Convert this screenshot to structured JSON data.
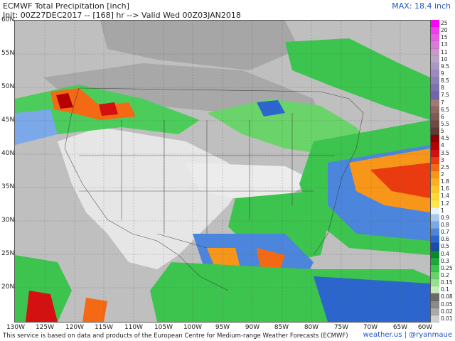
{
  "header": {
    "title": "ECMWF Total Precipitation [inch]",
    "subtitle": "Init: 00Z27DEC2017 -- [168] hr --> Valid Wed 00Z03JAN2018",
    "max_label": "MAX: 18.4 inch"
  },
  "axes": {
    "lat_labels": [
      "60N",
      "55N",
      "50N",
      "45N",
      "40N",
      "35N",
      "30N",
      "25N",
      "20N"
    ],
    "lon_labels": [
      "130W",
      "125W",
      "120W",
      "115W",
      "110W",
      "105W",
      "100W",
      "95W",
      "90W",
      "85W",
      "80W",
      "75W",
      "70W",
      "65W",
      "60W"
    ]
  },
  "colorbar": {
    "levels": [
      {
        "label": "25",
        "color": "#ff00ff"
      },
      {
        "label": "20",
        "color": "#f23cf2"
      },
      {
        "label": "15",
        "color": "#e45fe4"
      },
      {
        "label": "13",
        "color": "#d67ed6"
      },
      {
        "label": "11",
        "color": "#c89ac8"
      },
      {
        "label": "10",
        "color": "#b9a6c6"
      },
      {
        "label": "9.5",
        "color": "#a898c2"
      },
      {
        "label": "9",
        "color": "#9a8bbe"
      },
      {
        "label": "8.5",
        "color": "#8c7fb8"
      },
      {
        "label": "8",
        "color": "#7d72b0"
      },
      {
        "label": "7.5",
        "color": "#6f66a8"
      },
      {
        "label": "7",
        "color": "#a07c70"
      },
      {
        "label": "6.5",
        "color": "#8f6a60"
      },
      {
        "label": "6",
        "color": "#7f5a50"
      },
      {
        "label": "5.5",
        "color": "#6e4a42"
      },
      {
        "label": "5",
        "color": "#5e3a34"
      },
      {
        "label": "4.5",
        "color": "#8c0000"
      },
      {
        "label": "4",
        "color": "#b40000"
      },
      {
        "label": "3.5",
        "color": "#d41010"
      },
      {
        "label": "3",
        "color": "#ea3a10"
      },
      {
        "label": "2.5",
        "color": "#f46a14"
      },
      {
        "label": "2",
        "color": "#f8961a"
      },
      {
        "label": "1.8",
        "color": "#fbb022"
      },
      {
        "label": "1.6",
        "color": "#fdc52c"
      },
      {
        "label": "1.4",
        "color": "#fed838"
      },
      {
        "label": "1.2",
        "color": "#fee84c"
      },
      {
        "label": "1",
        "color": "#e8f0f8"
      },
      {
        "label": "0.9",
        "color": "#a8c8f0"
      },
      {
        "label": "0.8",
        "color": "#7aa8e8"
      },
      {
        "label": "0.7",
        "color": "#4c86dc"
      },
      {
        "label": "0.6",
        "color": "#2c66cc"
      },
      {
        "label": "0.5",
        "color": "#1a4cb0"
      },
      {
        "label": "0.4",
        "color": "#0a8a2a"
      },
      {
        "label": "0.3",
        "color": "#1aaa3a"
      },
      {
        "label": "0.25",
        "color": "#3cc44e"
      },
      {
        "label": "0.2",
        "color": "#6ad46a"
      },
      {
        "label": "0.15",
        "color": "#98e090"
      },
      {
        "label": "0.1",
        "color": "#c4ecbc"
      },
      {
        "label": "0.08",
        "color": "#6a6a6a"
      },
      {
        "label": "0.05",
        "color": "#8a8a8a"
      },
      {
        "label": "0.02",
        "color": "#aaaaaa"
      },
      {
        "label": "0.01",
        "color": "#cfcfcf"
      }
    ]
  },
  "footer": {
    "notice": "This service is based on data and products of the European Centre for Medium-range Weather Forecasts (ECMWF)",
    "credit": "weather.us | @ryanmaue"
  },
  "colors": {
    "background_gray": "#bdbdbd",
    "max_label": "#2255cc",
    "credit": "#2255cc"
  }
}
